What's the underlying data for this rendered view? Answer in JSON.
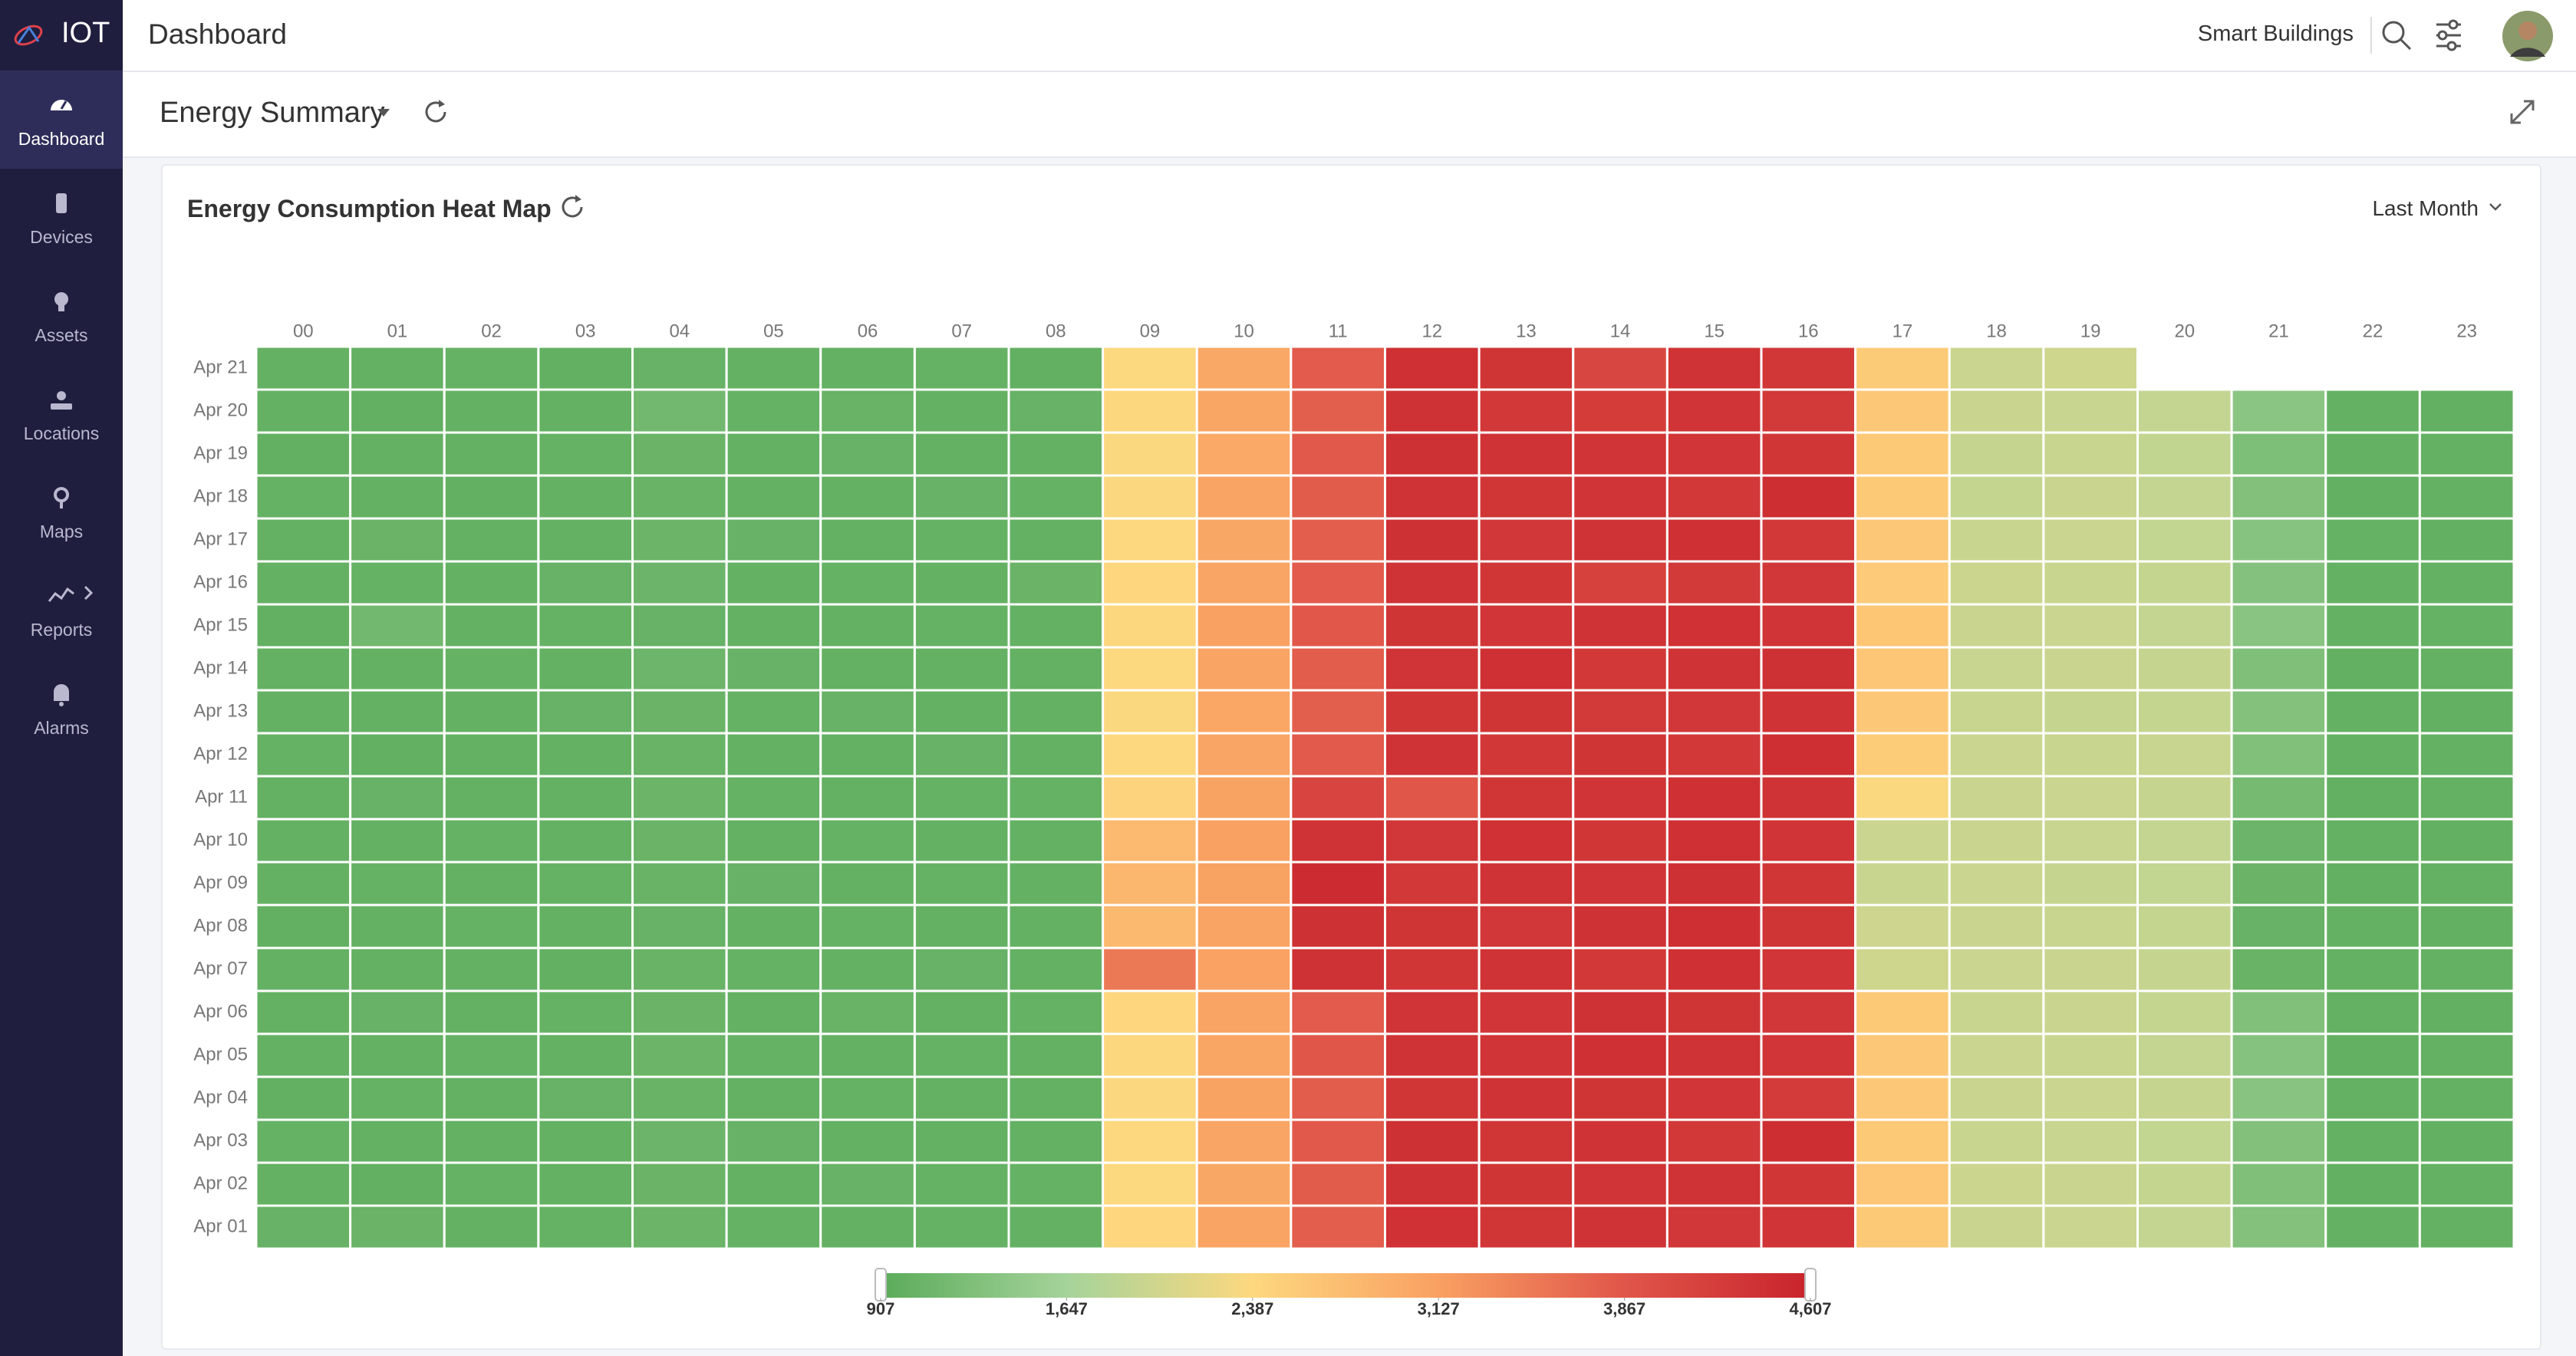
{
  "app": {
    "brand": "IOT",
    "page_title": "Dashboard",
    "workspace": "Smart Buildings"
  },
  "nav": [
    "Dashboard",
    "Devices",
    "Assets",
    "Locations",
    "Maps",
    "Reports",
    "Alarms"
  ],
  "dashboard": {
    "title": "Energy Summary"
  },
  "chart_data": {
    "type": "heatmap",
    "title": "Energy Consumption Heat Map",
    "filter": "Last Month",
    "x": [
      "00",
      "01",
      "02",
      "03",
      "04",
      "05",
      "06",
      "07",
      "08",
      "09",
      "10",
      "11",
      "12",
      "13",
      "14",
      "15",
      "16",
      "17",
      "18",
      "19",
      "20",
      "21",
      "22",
      "23"
    ],
    "y": [
      "Apr 21",
      "Apr 20",
      "Apr 19",
      "Apr 18",
      "Apr 17",
      "Apr 16",
      "Apr 15",
      "Apr 14",
      "Apr 13",
      "Apr 12",
      "Apr 11",
      "Apr 10",
      "Apr 09",
      "Apr 08",
      "Apr 07",
      "Apr 06",
      "Apr 05",
      "Apr 04",
      "Apr 03",
      "Apr 02",
      "Apr 01"
    ],
    "values": [
      [
        1020,
        1010,
        1030,
        1000,
        1040,
        1020,
        1010,
        1030,
        1000,
        2380,
        3020,
        3820,
        4420,
        4350,
        4100,
        4380,
        4310,
        2560,
        1960,
        1990,
        null,
        null,
        null,
        null
      ],
      [
        1010,
        1000,
        1020,
        1010,
        1150,
        1030,
        1050,
        1020,
        1040,
        2400,
        3050,
        3780,
        4390,
        4300,
        4250,
        4360,
        4290,
        2600,
        1950,
        1930,
        1900,
        1380,
        1010,
        1000
      ],
      [
        1000,
        1020,
        1010,
        1030,
        1060,
        1010,
        1040,
        1020,
        1010,
        2350,
        3010,
        3840,
        4410,
        4380,
        4360,
        4340,
        4330,
        2580,
        1920,
        1940,
        1880,
        1250,
        1020,
        1010
      ],
      [
        1030,
        1010,
        1000,
        1020,
        1050,
        1020,
        1010,
        1040,
        1030,
        2370,
        3080,
        3810,
        4380,
        4330,
        4360,
        4300,
        4450,
        2590,
        1910,
        1950,
        1900,
        1300,
        1000,
        1020
      ],
      [
        1010,
        1060,
        1020,
        1010,
        1070,
        1040,
        1020,
        1030,
        1010,
        2390,
        3040,
        3790,
        4410,
        4320,
        4380,
        4420,
        4300,
        2610,
        1940,
        1960,
        1890,
        1350,
        1030,
        1000
      ],
      [
        1020,
        1030,
        1010,
        1040,
        1080,
        1020,
        1030,
        1010,
        1060,
        2410,
        3060,
        3820,
        4370,
        4330,
        4180,
        4290,
        4320,
        2570,
        1970,
        1940,
        1910,
        1320,
        1020,
        1010
      ],
      [
        1000,
        1150,
        1020,
        1030,
        1040,
        1010,
        1020,
        1030,
        1020,
        2400,
        3120,
        3850,
        4350,
        4340,
        4380,
        4400,
        4360,
        2630,
        1950,
        1960,
        1900,
        1370,
        1010,
        1030
      ],
      [
        1010,
        1020,
        1030,
        1010,
        1090,
        1040,
        1010,
        1020,
        1010,
        2380,
        3070,
        3800,
        4360,
        4420,
        4300,
        4380,
        4410,
        2620,
        1930,
        1950,
        1920,
        1280,
        1000,
        1010
      ],
      [
        1020,
        1010,
        1020,
        1040,
        1060,
        1030,
        1040,
        1010,
        1020,
        2360,
        3030,
        3780,
        4330,
        4350,
        4290,
        4320,
        4380,
        2600,
        1940,
        1920,
        1910,
        1310,
        1020,
        1000
      ],
      [
        1030,
        1000,
        1010,
        1020,
        1050,
        1020,
        1010,
        1040,
        1010,
        2390,
        3060,
        3830,
        4380,
        4310,
        4350,
        4300,
        4430,
        2540,
        1960,
        1940,
        1930,
        1290,
        1010,
        1020
      ],
      [
        1010,
        1040,
        1020,
        1010,
        1070,
        1030,
        1020,
        1030,
        1030,
        2450,
        3090,
        4120,
        3860,
        4330,
        4360,
        4420,
        4380,
        2350,
        1950,
        1960,
        1920,
        1180,
        1000,
        1010
      ],
      [
        1020,
        1010,
        1030,
        1020,
        1060,
        1010,
        1030,
        1020,
        1010,
        2780,
        3110,
        4380,
        4320,
        4400,
        4330,
        4420,
        4360,
        1960,
        1950,
        1930,
        1900,
        1080,
        1010,
        1000
      ],
      [
        1010,
        1030,
        1010,
        1030,
        1050,
        1040,
        1010,
        1030,
        1020,
        2820,
        3090,
        4480,
        4300,
        4380,
        4360,
        4410,
        4330,
        1940,
        1960,
        1920,
        1890,
        1060,
        1000,
        1010
      ],
      [
        1000,
        1020,
        1030,
        1010,
        1040,
        1020,
        1030,
        1010,
        1020,
        2800,
        3080,
        4410,
        4350,
        4320,
        4390,
        4430,
        4350,
        1980,
        1950,
        1940,
        1910,
        1040,
        1020,
        1000
      ],
      [
        1020,
        1010,
        1020,
        1000,
        1050,
        1030,
        1020,
        1040,
        1010,
        3520,
        3100,
        4390,
        4330,
        4380,
        4300,
        4420,
        4340,
        1990,
        1960,
        1950,
        1920,
        1050,
        1010,
        1020
      ],
      [
        1010,
        1040,
        1010,
        1030,
        1060,
        1020,
        1050,
        1020,
        1030,
        2420,
        3070,
        3820,
        4360,
        4340,
        4390,
        4350,
        4320,
        2580,
        1940,
        1950,
        1910,
        1290,
        1020,
        1000
      ],
      [
        1020,
        1010,
        1030,
        1010,
        1070,
        1030,
        1010,
        1030,
        1010,
        2400,
        3050,
        3860,
        4380,
        4360,
        4420,
        4380,
        4340,
        2610,
        1960,
        1940,
        1900,
        1330,
        1000,
        1010
      ],
      [
        1000,
        1030,
        1020,
        1040,
        1050,
        1010,
        1030,
        1010,
        1020,
        2370,
        3090,
        3800,
        4330,
        4370,
        4350,
        4340,
        4260,
        2600,
        1950,
        1960,
        1920,
        1360,
        1010,
        1020
      ],
      [
        1030,
        1020,
        1010,
        1020,
        1080,
        1040,
        1020,
        1020,
        1010,
        2390,
        3060,
        3840,
        4410,
        4330,
        4370,
        4300,
        4450,
        2590,
        1940,
        1930,
        1890,
        1300,
        1020,
        1000
      ],
      [
        1010,
        1000,
        1030,
        1010,
        1060,
        1020,
        1040,
        1030,
        1030,
        2380,
        3040,
        3810,
        4390,
        4350,
        4360,
        4380,
        4330,
        2620,
        1970,
        1950,
        1910,
        1280,
        1000,
        1010
      ],
      [
        1040,
        1060,
        1020,
        1030,
        1070,
        1030,
        1020,
        1030,
        1020,
        2410,
        3070,
        3790,
        4400,
        4330,
        4380,
        4320,
        4360,
        2590,
        1950,
        1960,
        1900,
        1310,
        1020,
        1010
      ]
    ],
    "colorscale": [
      "#5aab5a",
      "#a5d39a",
      "#fdd87f",
      "#f9a062",
      "#e0564a",
      "#c8232c"
    ],
    "zlim": [
      907,
      4607
    ],
    "zticks": [
      {
        "value": 907,
        "label": "907"
      },
      {
        "value": 1647,
        "label": "1,647"
      },
      {
        "value": 2387,
        "label": "2,387"
      },
      {
        "value": 3127,
        "label": "3,127"
      },
      {
        "value": 3867,
        "label": "3,867"
      },
      {
        "value": 4607,
        "label": "4,607"
      }
    ]
  }
}
